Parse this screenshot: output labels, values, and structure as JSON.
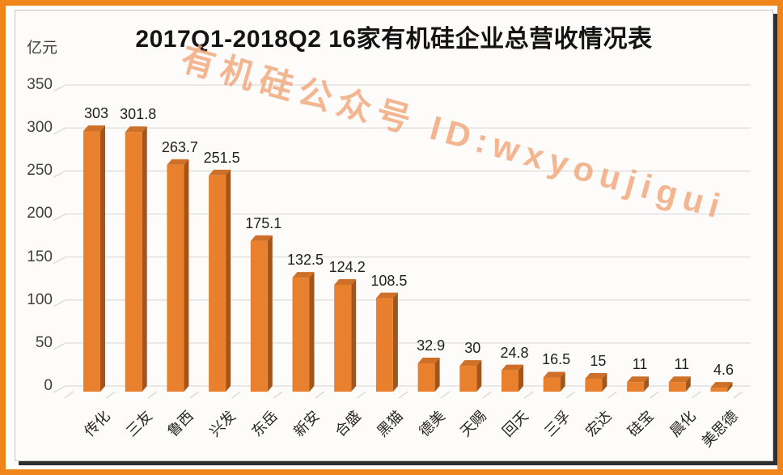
{
  "frame": {
    "border_color": "#F08519"
  },
  "watermark": {
    "text": "有机硅公众号 ID:wxyoujigui",
    "color": "#F2A478"
  },
  "chart_data": {
    "type": "bar",
    "style": "3d-column",
    "title": "2017Q1-2018Q2  16家有机硅企业总营收情况表",
    "ylabel": "亿元",
    "xlabel": "",
    "categories": [
      "传化",
      "三友",
      "鲁西",
      "兴发",
      "东岳",
      "新安",
      "合盛",
      "黑猫",
      "德美",
      "天赐",
      "回天",
      "三孚",
      "宏达",
      "硅宝",
      "晨化",
      "美思德"
    ],
    "values": [
      303,
      301.8,
      263.7,
      251.5,
      175.1,
      132.5,
      124.2,
      108.5,
      32.9,
      30,
      24.8,
      16.5,
      15,
      11,
      11,
      4.6
    ],
    "ylim": [
      0,
      350
    ],
    "yticks": [
      0,
      50,
      100,
      150,
      200,
      250,
      300,
      350
    ],
    "grid": true,
    "legend": "none",
    "data_labels": true,
    "colors": {
      "bar_front": "#E8802E",
      "bar_side": "#A4561A",
      "bar_top": "#CE7027",
      "gridline": "#DBDBDB",
      "value_label": "#1f1f1f",
      "axis_label": "#3f3f3f",
      "card_bg": "#FDFCFA",
      "card_border": "#C8C6C3",
      "shadow": "#2F2F2F"
    }
  }
}
